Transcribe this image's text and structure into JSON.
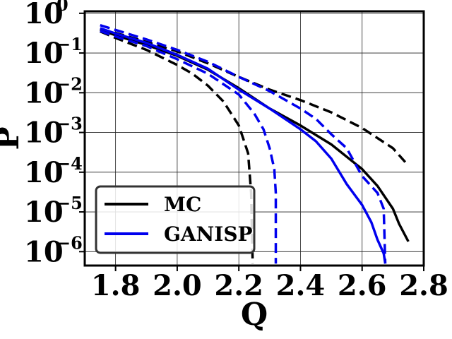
{
  "chart_data": {
    "type": "line",
    "xlabel": "Q",
    "ylabel": "P",
    "xlim": [
      1.7,
      2.8
    ],
    "ylim_log10": [
      -6.35,
      0.05
    ],
    "yscale": "log",
    "grid": true,
    "x_ticks": [
      "1.8",
      "2.0",
      "2.2",
      "2.4",
      "2.6",
      "2.8"
    ],
    "y_tick_mantissa": "10",
    "y_tick_exponents": [
      "0",
      "−1",
      "−2",
      "−3",
      "−4",
      "−5",
      "−6"
    ],
    "legend_position": "lower-left",
    "legend": [
      {
        "label": "MC",
        "color": "#000000"
      },
      {
        "label": "GANISP",
        "color": "#0000ee"
      }
    ],
    "series": [
      {
        "name": "MC",
        "color": "#000000",
        "dash": false,
        "x": [
          1.75,
          1.8,
          1.9,
          2.0,
          2.1,
          2.2,
          2.3,
          2.4,
          2.5,
          2.6,
          2.65,
          2.7,
          2.72,
          2.75
        ],
        "y": [
          0.38,
          0.28,
          0.16,
          0.085,
          0.038,
          0.013,
          0.004,
          0.0015,
          0.0005,
          0.00012,
          4.5e-05,
          1.2e-05,
          5e-06,
          1.8e-06
        ]
      },
      {
        "name": "",
        "color": "#000000",
        "dash": true,
        "x": [
          1.75,
          1.8,
          1.9,
          2.0,
          2.1,
          2.2,
          2.3,
          2.4,
          2.5,
          2.6,
          2.7,
          2.74
        ],
        "y": [
          0.4,
          0.32,
          0.19,
          0.11,
          0.055,
          0.025,
          0.012,
          0.0065,
          0.0032,
          0.0013,
          0.0004,
          0.00018
        ]
      },
      {
        "name": "",
        "color": "#000000",
        "dash": true,
        "x": [
          1.75,
          1.8,
          1.9,
          2.0,
          2.05,
          2.1,
          2.15,
          2.2,
          2.23,
          2.24,
          2.245
        ],
        "y": [
          0.35,
          0.24,
          0.12,
          0.05,
          0.03,
          0.015,
          0.006,
          0.0015,
          0.0003,
          3e-05,
          5e-07
        ]
      },
      {
        "name": "GANISP",
        "color": "#0000ee",
        "dash": false,
        "x": [
          1.75,
          1.8,
          1.9,
          2.0,
          2.1,
          2.2,
          2.3,
          2.4,
          2.45,
          2.5,
          2.55,
          2.6,
          2.63,
          2.65,
          2.67,
          2.675
        ],
        "y": [
          0.42,
          0.31,
          0.18,
          0.09,
          0.04,
          0.012,
          0.004,
          0.0012,
          0.0006,
          0.00022,
          5e-05,
          1.5e-05,
          5.5e-06,
          2e-06,
          9e-07,
          5e-07
        ]
      },
      {
        "name": "",
        "color": "#0000ee",
        "dash": true,
        "x": [
          1.75,
          1.8,
          1.9,
          2.0,
          2.1,
          2.2,
          2.3,
          2.4,
          2.45,
          2.5,
          2.55,
          2.6,
          2.65,
          2.67,
          2.675
        ],
        "y": [
          0.5,
          0.38,
          0.22,
          0.12,
          0.06,
          0.025,
          0.011,
          0.004,
          0.0022,
          0.0009,
          0.0004,
          8e-05,
          3e-05,
          1.2e-05,
          5e-07
        ]
      },
      {
        "name": "",
        "color": "#0000ee",
        "dash": true,
        "x": [
          1.75,
          1.8,
          1.9,
          2.0,
          2.1,
          2.2,
          2.25,
          2.28,
          2.3,
          2.315,
          2.32,
          2.32
        ],
        "y": [
          0.36,
          0.26,
          0.15,
          0.07,
          0.03,
          0.009,
          0.003,
          0.0012,
          0.0004,
          0.00012,
          3e-05,
          5e-07
        ]
      }
    ]
  }
}
